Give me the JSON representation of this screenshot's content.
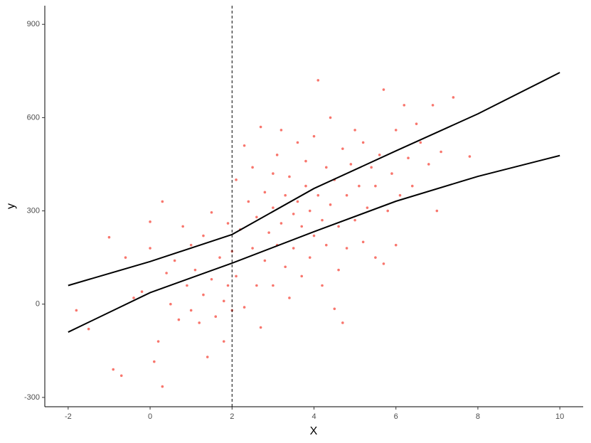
{
  "chart_data": {
    "type": "scatter",
    "x_label": "X",
    "y_label": "y",
    "xlim": [
      -2.57,
      10.57
    ],
    "ylim": [
      -330,
      960
    ],
    "xticks": [
      -2,
      0,
      2,
      4,
      6,
      8,
      10
    ],
    "yticks": [
      -300,
      0,
      300,
      600,
      900
    ],
    "vline": 2,
    "points": {
      "color": "#f8766d",
      "x": [
        -1.8,
        -1.5,
        -1.0,
        -0.9,
        -0.7,
        -0.6,
        -0.4,
        -0.2,
        0.0,
        0.0,
        0.1,
        0.2,
        0.3,
        0.3,
        0.4,
        0.5,
        0.6,
        0.7,
        0.8,
        0.9,
        1.0,
        1.0,
        1.1,
        1.2,
        1.3,
        1.3,
        1.4,
        1.5,
        1.5,
        1.6,
        1.7,
        1.8,
        1.8,
        1.9,
        1.9,
        2.0,
        2.0,
        2.1,
        2.1,
        2.2,
        2.3,
        2.3,
        2.4,
        2.5,
        2.5,
        2.6,
        2.6,
        2.7,
        2.7,
        2.8,
        2.8,
        2.9,
        3.0,
        3.0,
        3.0,
        3.1,
        3.1,
        3.2,
        3.2,
        3.3,
        3.3,
        3.4,
        3.4,
        3.5,
        3.5,
        3.6,
        3.6,
        3.7,
        3.7,
        3.8,
        3.8,
        3.9,
        3.9,
        4.0,
        4.0,
        4.1,
        4.1,
        4.2,
        4.2,
        4.3,
        4.3,
        4.4,
        4.4,
        4.5,
        4.5,
        4.6,
        4.6,
        4.7,
        4.7,
        4.8,
        4.8,
        4.9,
        5.0,
        5.0,
        5.1,
        5.2,
        5.2,
        5.3,
        5.4,
        5.5,
        5.5,
        5.6,
        5.7,
        5.7,
        5.8,
        5.9,
        6.0,
        6.0,
        6.1,
        6.2,
        6.3,
        6.4,
        6.5,
        6.6,
        6.8,
        6.9,
        7.0,
        7.1,
        7.4,
        7.8
      ],
      "y": [
        -20,
        -80,
        215,
        -210,
        -230,
        150,
        20,
        40,
        265,
        180,
        -185,
        -120,
        330,
        -265,
        100,
        0,
        140,
        -50,
        250,
        60,
        -20,
        190,
        110,
        -60,
        30,
        220,
        -170,
        80,
        295,
        -40,
        150,
        10,
        -120,
        260,
        60,
        -20,
        170,
        400,
        90,
        240,
        510,
        -10,
        330,
        180,
        440,
        60,
        280,
        570,
        -75,
        360,
        140,
        230,
        420,
        310,
        60,
        190,
        480,
        260,
        560,
        120,
        350,
        20,
        410,
        290,
        180,
        520,
        330,
        90,
        250,
        460,
        380,
        150,
        300,
        540,
        220,
        350,
        720,
        270,
        60,
        440,
        190,
        600,
        320,
        -15,
        400,
        250,
        110,
        500,
        -60,
        350,
        180,
        450,
        270,
        560,
        380,
        200,
        520,
        310,
        440,
        150,
        380,
        480,
        690,
        130,
        300,
        420,
        190,
        560,
        350,
        640,
        470,
        380,
        580,
        520,
        450,
        640,
        300,
        490,
        665,
        475
      ]
    },
    "lines": [
      {
        "color": "#000000",
        "x": [
          -2,
          0,
          2,
          4,
          6,
          8,
          10
        ],
        "values": [
          60,
          137,
          224,
          372,
          493,
          612,
          745
        ]
      },
      {
        "color": "#000000",
        "x": [
          -2,
          0,
          2,
          4,
          6,
          8,
          10
        ],
        "values": [
          -90,
          37,
          132,
          233,
          331,
          411,
          478
        ]
      }
    ]
  }
}
